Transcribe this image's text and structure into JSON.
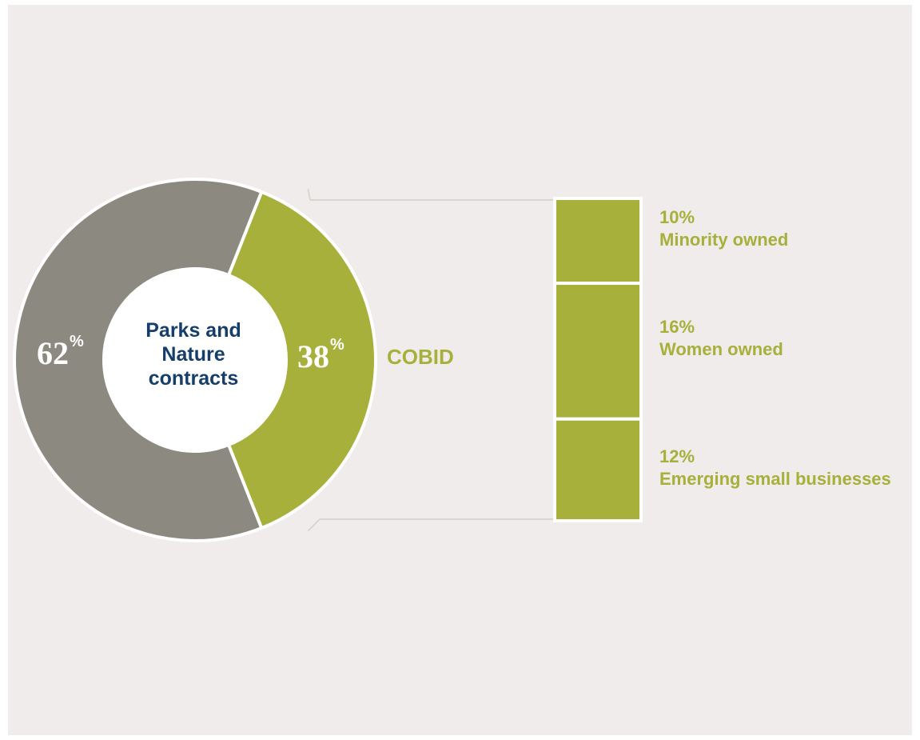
{
  "colors": {
    "background": "#efeceb",
    "gray": "#8c8a80",
    "green": "#a6b03a",
    "navy": "#163e6b",
    "connector": "#d9d6d2"
  },
  "center_label": {
    "line1": "Parks and",
    "line2": "Nature",
    "line3": "contracts"
  },
  "chart_data": [
    {
      "type": "pie",
      "slices": [
        {
          "value": 62,
          "label": "62",
          "unit": "%",
          "color": "#8c8a80"
        },
        {
          "value": 38,
          "label": "38",
          "unit": "%",
          "color": "#a6b03a",
          "name": "COBID"
        }
      ]
    },
    {
      "type": "bar",
      "stacked": true,
      "parent": "COBID",
      "segments": [
        {
          "value": 10,
          "pct_label": "10%",
          "name": "Minority owned"
        },
        {
          "value": 16,
          "pct_label": "16%",
          "name": "Women owned"
        },
        {
          "value": 12,
          "pct_label": "12%",
          "name": "Emerging small businesses"
        }
      ]
    }
  ]
}
